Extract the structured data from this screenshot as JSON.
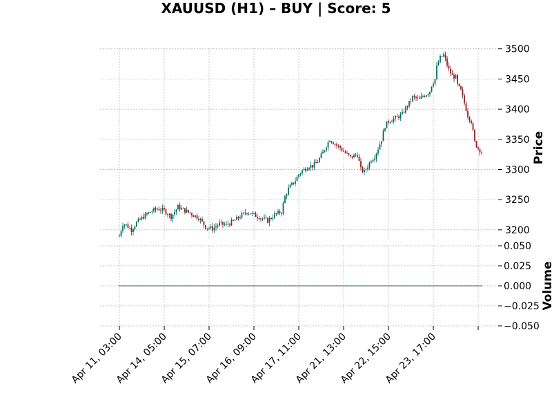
{
  "chart_data": {
    "type": "candlestick",
    "title": "XAUUSD (H1) – BUY | Score: 5",
    "colors": {
      "up": "#00695c",
      "down": "#8b1a1a",
      "grid": "#b0b0b0"
    },
    "grid": true,
    "x_tick_labels": [
      "Apr 11, 03:00",
      "Apr 14, 05:00",
      "Apr 15, 07:00",
      "Apr 16, 09:00",
      "Apr 17, 11:00",
      "Apr 21, 13:00",
      "Apr 22, 15:00",
      "Apr 23, 17:00"
    ],
    "bars_per_tick": 26,
    "total_bars": 210,
    "price_panel": {
      "ylabel": "Price",
      "ylim": [
        3185,
        3502
      ],
      "yticks": [
        3200,
        3250,
        3300,
        3350,
        3400,
        3450,
        3500
      ],
      "close_path": [
        [
          0,
          3190
        ],
        [
          2,
          3210
        ],
        [
          4,
          3208
        ],
        [
          7,
          3200
        ],
        [
          10,
          3212
        ],
        [
          14,
          3222
        ],
        [
          18,
          3230
        ],
        [
          22,
          3235
        ],
        [
          26,
          3232
        ],
        [
          30,
          3222
        ],
        [
          34,
          3238
        ],
        [
          38,
          3232
        ],
        [
          42,
          3226
        ],
        [
          46,
          3220
        ],
        [
          50,
          3205
        ],
        [
          54,
          3202
        ],
        [
          58,
          3210
        ],
        [
          62,
          3208
        ],
        [
          66,
          3214
        ],
        [
          70,
          3222
        ],
        [
          74,
          3230
        ],
        [
          78,
          3225
        ],
        [
          82,
          3220
        ],
        [
          86,
          3215
        ],
        [
          90,
          3225
        ],
        [
          94,
          3230
        ],
        [
          70,
          3222
        ],
        [
          71,
          3224
        ],
        [
          72,
          3228
        ],
        [
          73,
          3230
        ],
        [
          74,
          3228
        ],
        [
          76,
          3226
        ],
        [
          78,
          3224
        ],
        [
          80,
          3220
        ],
        [
          82,
          3218
        ],
        [
          84,
          3216
        ],
        [
          86,
          3218
        ],
        [
          88,
          3222
        ],
        [
          90,
          3228
        ],
        [
          92,
          3232
        ],
        [
          94,
          3242
        ],
        [
          96,
          3255
        ],
        [
          98,
          3268
        ],
        [
          100,
          3275
        ],
        [
          102,
          3282
        ],
        [
          104,
          3292
        ],
        [
          106,
          3298
        ],
        [
          108,
          3302
        ],
        [
          110,
          3306
        ],
        [
          112,
          3306
        ],
        [
          114,
          3310
        ],
        [
          116,
          3318
        ],
        [
          118,
          3328
        ],
        [
          120,
          3340
        ],
        [
          122,
          3350
        ],
        [
          124,
          3345
        ],
        [
          126,
          3340
        ],
        [
          128,
          3336
        ],
        [
          130,
          3330
        ],
        [
          132,
          3325
        ],
        [
          134,
          3320
        ],
        [
          136,
          3323
        ],
        [
          138,
          3325
        ],
        [
          140,
          3300
        ],
        [
          142,
          3296
        ],
        [
          144,
          3306
        ],
        [
          146,
          3316
        ],
        [
          148,
          3322
        ],
        [
          150,
          3335
        ],
        [
          152,
          3350
        ],
        [
          154,
          3372
        ],
        [
          156,
          3380
        ],
        [
          158,
          3383
        ],
        [
          160,
          3385
        ],
        [
          162,
          3388
        ],
        [
          164,
          3392
        ],
        [
          166,
          3402
        ],
        [
          168,
          3410
        ],
        [
          170,
          3420
        ],
        [
          172,
          3418
        ],
        [
          174,
          3416
        ],
        [
          176,
          3422
        ],
        [
          178,
          3425
        ],
        [
          180,
          3430
        ],
        [
          181,
          3440
        ]
      ],
      "close_path_tail": [
        [
          181,
          3440
        ],
        [
          183,
          3450
        ],
        [
          184,
          3470
        ],
        [
          186,
          3485
        ],
        [
          188,
          3490
        ],
        [
          189,
          3482
        ],
        [
          191,
          3465
        ],
        [
          193,
          3455
        ],
        [
          195,
          3453
        ],
        [
          196,
          3440
        ],
        [
          198,
          3430
        ],
        [
          200,
          3410
        ],
        [
          202,
          3390
        ],
        [
          204,
          3380
        ],
        [
          206,
          3345
        ],
        [
          208,
          3335
        ],
        [
          210,
          3330
        ]
      ]
    },
    "volume_panel": {
      "ylabel": "Volume",
      "ylim": [
        -0.05,
        0.05
      ],
      "yticks": [
        0.05,
        0.025,
        0.0,
        -0.025,
        -0.05
      ],
      "ytick_labels": [
        "0.050",
        "0.025",
        "0.000",
        "−0.025",
        "−0.050"
      ],
      "values_all": 0
    }
  }
}
